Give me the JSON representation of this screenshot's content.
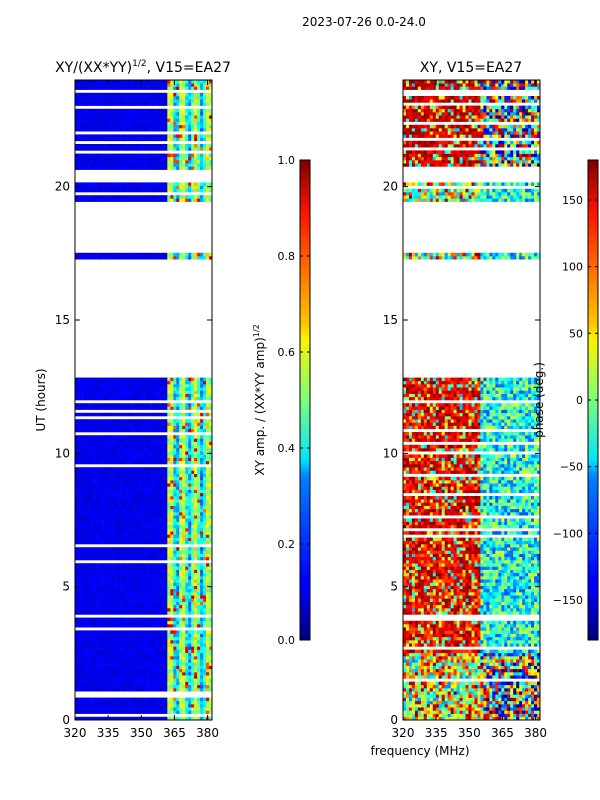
{
  "figure": {
    "suptitle": "2023-07-26 0.0-24.0",
    "shared_xlabel": "frequency (MHz)"
  },
  "chart_data": [
    {
      "type": "heatmap",
      "title_main": "XY/(XX*YY)",
      "title_sup": "1/2",
      "title_rest": ", V15=EA27",
      "xlabel": "frequency (MHz)",
      "ylabel": "UT (hours)",
      "xlim": [
        320,
        382
      ],
      "ylim": [
        0,
        24
      ],
      "xticks": [
        320,
        335,
        350,
        365,
        380
      ],
      "yticks": [
        0,
        5,
        10,
        15,
        20
      ],
      "colorbar": {
        "label_main": "XY amp. / (XX*YY amp)",
        "label_sup": "1/2",
        "range": [
          0.0,
          1.0
        ],
        "ticks": [
          "0.0",
          "0.2",
          "0.4",
          "0.6",
          "0.8",
          "1.0"
        ],
        "tick_values": [
          0.0,
          0.2,
          0.4,
          0.6,
          0.8,
          1.0
        ]
      },
      "data_gaps_hours": [
        [
          12.8,
          17.3
        ],
        [
          17.55,
          19.4
        ],
        [
          20.1,
          20.6
        ]
      ],
      "bright_band_mhz": [
        361,
        381
      ]
    },
    {
      "type": "heatmap",
      "title": "XY, V15=EA27",
      "xlabel": "frequency (MHz)",
      "ylabel": "",
      "xlim": [
        320,
        382
      ],
      "ylim": [
        0,
        24
      ],
      "xticks": [
        320,
        335,
        350,
        365,
        380
      ],
      "yticks": [
        0,
        5,
        10,
        15,
        20
      ],
      "colorbar": {
        "label": "phase (deg.)",
        "range": [
          -180,
          180
        ],
        "ticks": [
          "150",
          "100",
          "50",
          "0",
          "−50",
          "−100",
          "−150"
        ],
        "tick_values": [
          150,
          100,
          50,
          0,
          -50,
          -100,
          -150
        ]
      },
      "data_gaps_hours": [
        [
          12.8,
          17.3
        ],
        [
          17.55,
          19.4
        ],
        [
          20.1,
          20.6
        ]
      ]
    }
  ]
}
